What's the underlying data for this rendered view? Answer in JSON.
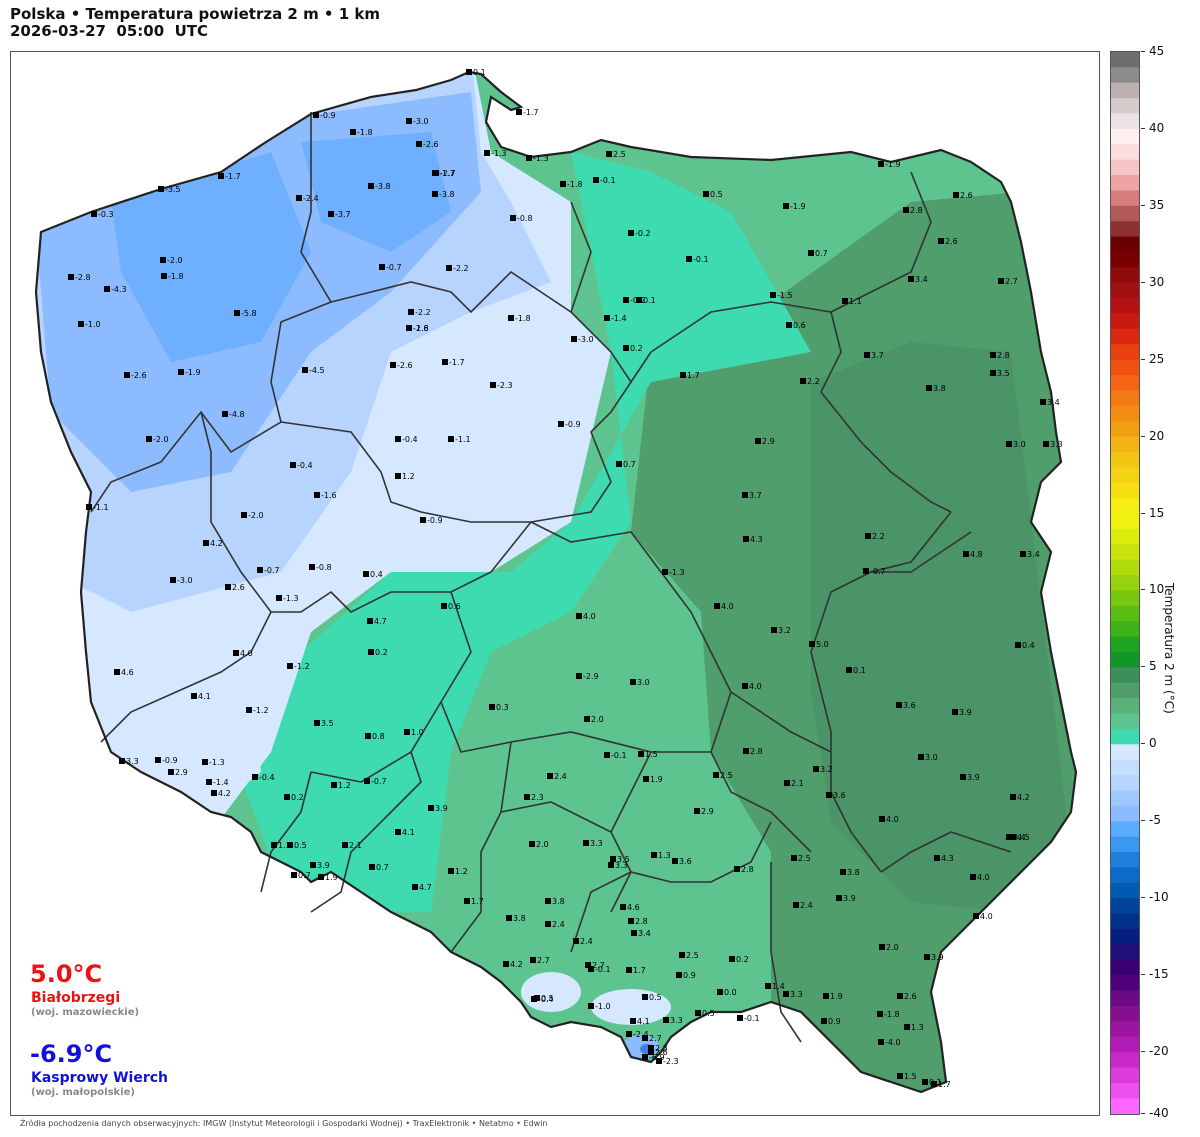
{
  "header": {
    "title_line1": "Polska • Temperatura powietrza 2 m • 1 km",
    "title_line2": "2026-03-27  05:00  UTC"
  },
  "extremes": {
    "max": {
      "value": "5.0°C",
      "station": "Białobrzegi",
      "region": "(woj. mazowieckie)"
    },
    "min": {
      "value": "-6.9°C",
      "station": "Kasprowy Wierch",
      "region": "(woj. małopolskie)"
    }
  },
  "footer": {
    "source": "Źródła pochodzenia danych obserwacyjnych: IMGW (Instytut Meteorologii i Gospodarki Wodnej)  •  TraxElektronik  •  Netatmo  •  Edwin"
  },
  "colorbar": {
    "label": "Temperatura 2 m (°C)",
    "ticks": [
      "45",
      "40",
      "35",
      "30",
      "25",
      "20",
      "15",
      "10",
      "5",
      "0",
      "-5",
      "-10",
      "-15",
      "-20",
      "-40"
    ],
    "colors": {
      "warm_green": "#4a9a6a",
      "mid_green": "#5ec48f",
      "light_green": "#3fdbb0",
      "pale_blue": "#d6e8ff",
      "light_blue": "#b7d4ff",
      "blue": "#8cbcff",
      "deep_blue": "#55a7ff"
    }
  },
  "stations": [
    {
      "v": "0.1"
    },
    {
      "v": "-1.7"
    },
    {
      "v": "-0.9"
    },
    {
      "v": "-1.8"
    },
    {
      "v": "-3.0"
    },
    {
      "v": "-2.6"
    },
    {
      "v": "-1.7"
    },
    {
      "v": "-1.3"
    },
    {
      "v": "-1.3"
    },
    {
      "v": "2.5"
    },
    {
      "v": "-1.9"
    },
    {
      "v": "-2.7"
    },
    {
      "v": "-3.8"
    },
    {
      "v": "-3.8"
    },
    {
      "v": "-1.7"
    },
    {
      "v": "-3.5"
    },
    {
      "v": "-2.4"
    },
    {
      "v": "-0.1"
    },
    {
      "v": "-1.8"
    },
    {
      "v": "0.5"
    },
    {
      "v": "-1.9"
    },
    {
      "v": "2.6"
    },
    {
      "v": "-0.3"
    },
    {
      "v": "-3.7"
    },
    {
      "v": "-0.8"
    },
    {
      "v": "-0.2"
    },
    {
      "v": "2.6"
    },
    {
      "v": "2.8"
    },
    {
      "v": "-0.1"
    },
    {
      "v": "0.1"
    },
    {
      "v": "-2.0"
    },
    {
      "v": "-1.8"
    },
    {
      "v": "-0.7"
    },
    {
      "v": "-2.2"
    },
    {
      "v": "-1.8"
    },
    {
      "v": "0.7"
    },
    {
      "v": "3.4"
    },
    {
      "v": "2.7"
    },
    {
      "v": "-2.8"
    },
    {
      "v": "-4.3"
    },
    {
      "v": "-5.8"
    },
    {
      "v": "-1.5"
    },
    {
      "v": "1.1"
    },
    {
      "v": "-0.2"
    },
    {
      "v": "-1.0"
    },
    {
      "v": "-2.2"
    },
    {
      "v": "-1.8"
    },
    {
      "v": "-1.4"
    },
    {
      "v": "0.6"
    },
    {
      "v": "-2.6"
    },
    {
      "v": "-3.0"
    },
    {
      "v": "0.2"
    },
    {
      "v": "3.7"
    },
    {
      "v": "2.8"
    },
    {
      "v": "-2.6"
    },
    {
      "v": "-1.9"
    },
    {
      "v": "-4.5"
    },
    {
      "v": "-2.6"
    },
    {
      "v": "-1.7"
    },
    {
      "v": "1.7"
    },
    {
      "v": "2.2"
    },
    {
      "v": "3.8"
    },
    {
      "v": "3.5"
    },
    {
      "v": "-2.3"
    },
    {
      "v": "3.4"
    },
    {
      "v": "-4.8"
    },
    {
      "v": "-0.9"
    },
    {
      "v": "-2.0"
    },
    {
      "v": "-0.4"
    },
    {
      "v": "-1.1"
    },
    {
      "v": "2.9"
    },
    {
      "v": "3.0"
    },
    {
      "v": "3.3"
    },
    {
      "v": "-0.4"
    },
    {
      "v": "0.7"
    },
    {
      "v": "1.2"
    },
    {
      "v": "-1.6"
    },
    {
      "v": "3.7"
    },
    {
      "v": "-1.1"
    },
    {
      "v": "-2.0"
    },
    {
      "v": "-0.9"
    },
    {
      "v": "2.2"
    },
    {
      "v": "4.3"
    },
    {
      "v": "4.8"
    },
    {
      "v": "3.4"
    },
    {
      "v": "4.2"
    },
    {
      "v": "-3.0"
    },
    {
      "v": "-0.7"
    },
    {
      "v": "-0.8"
    },
    {
      "v": "0.4"
    },
    {
      "v": "-1.3"
    },
    {
      "v": "2.6"
    },
    {
      "v": "-1.3"
    },
    {
      "v": "0.6"
    },
    {
      "v": "-0.7"
    },
    {
      "v": "4.0"
    },
    {
      "v": "4.0"
    },
    {
      "v": "3.2"
    },
    {
      "v": "5.0"
    },
    {
      "v": "4.7"
    },
    {
      "v": "0.4"
    },
    {
      "v": "4.0"
    },
    {
      "v": "-1.2"
    },
    {
      "v": "0.2"
    },
    {
      "v": "0.1"
    },
    {
      "v": "4.6"
    },
    {
      "v": "-2.9"
    },
    {
      "v": "3.0"
    },
    {
      "v": "4.0"
    },
    {
      "v": "4.1"
    },
    {
      "v": "-1.2"
    },
    {
      "v": "0.3"
    },
    {
      "v": "2.0"
    },
    {
      "v": "3.6"
    },
    {
      "v": "3.9"
    },
    {
      "v": "3.5"
    },
    {
      "v": "0.8"
    },
    {
      "v": "1.0"
    },
    {
      "v": "1.5"
    },
    {
      "v": "2.8"
    },
    {
      "v": "3.0"
    },
    {
      "v": "3.3"
    },
    {
      "v": "-0.9"
    },
    {
      "v": "-1.3"
    },
    {
      "v": "-0.1"
    },
    {
      "v": "2.4"
    },
    {
      "v": "2.9"
    },
    {
      "v": "-1.4"
    },
    {
      "v": "-0.4"
    },
    {
      "v": "0.2"
    },
    {
      "v": "1.9"
    },
    {
      "v": "2.5"
    },
    {
      "v": "3.2"
    },
    {
      "v": "3.9"
    },
    {
      "v": "4.2"
    },
    {
      "v": "-0.7"
    },
    {
      "v": "1.2"
    },
    {
      "v": "2.1"
    },
    {
      "v": "3.6"
    },
    {
      "v": "4.2"
    },
    {
      "v": "4.0"
    },
    {
      "v": "3.9"
    },
    {
      "v": "2.3"
    },
    {
      "v": "2.9"
    },
    {
      "v": "3.4"
    },
    {
      "v": "4.5"
    },
    {
      "v": "4.1"
    },
    {
      "v": "1.1"
    },
    {
      "v": "0.5"
    },
    {
      "v": "2.1"
    },
    {
      "v": "2.0"
    },
    {
      "v": "3.3"
    },
    {
      "v": "3.3"
    },
    {
      "v": "1.3"
    },
    {
      "v": "2.5"
    },
    {
      "v": "4.3"
    },
    {
      "v": "3.9"
    },
    {
      "v": "0.7"
    },
    {
      "v": "1.9"
    },
    {
      "v": "0.7"
    },
    {
      "v": "1.2"
    },
    {
      "v": "3.5"
    },
    {
      "v": "3.6"
    },
    {
      "v": "2.8"
    },
    {
      "v": "3.8"
    },
    {
      "v": "4.0"
    },
    {
      "v": "4.7"
    },
    {
      "v": "1.7"
    },
    {
      "v": "3.8"
    },
    {
      "v": "3.8"
    },
    {
      "v": "2.4"
    },
    {
      "v": "3.9"
    },
    {
      "v": "4.0"
    },
    {
      "v": "4.6"
    },
    {
      "v": "2.4"
    },
    {
      "v": "2.8"
    },
    {
      "v": "3.4"
    },
    {
      "v": "2.4"
    },
    {
      "v": "2.0"
    },
    {
      "v": "3.9"
    },
    {
      "v": "4.2"
    },
    {
      "v": "2.7"
    },
    {
      "v": "1.7"
    },
    {
      "v": "2.5"
    },
    {
      "v": "0.2"
    },
    {
      "v": "2.7"
    },
    {
      "v": "-0.1"
    },
    {
      "v": "0.9"
    },
    {
      "v": "0.5"
    },
    {
      "v": "3.3"
    },
    {
      "v": "1.9"
    },
    {
      "v": "2.6"
    },
    {
      "v": "0.5"
    },
    {
      "v": "-0.4"
    },
    {
      "v": "-1.0"
    },
    {
      "v": "0.0"
    },
    {
      "v": "4.1"
    },
    {
      "v": "3.3"
    },
    {
      "v": "0.5"
    },
    {
      "v": "1.4"
    },
    {
      "v": "0.9"
    },
    {
      "v": "-1.8"
    },
    {
      "v": "-0.1"
    },
    {
      "v": "1.3"
    },
    {
      "v": "-2.4"
    },
    {
      "v": "2.7"
    },
    {
      "v": "2.3"
    },
    {
      "v": "2.6"
    },
    {
      "v": "-6.9"
    },
    {
      "v": "-2.3"
    },
    {
      "v": "-4.0"
    },
    {
      "v": "1.5"
    },
    {
      "v": "0.1"
    },
    {
      "v": "1.7"
    }
  ]
}
